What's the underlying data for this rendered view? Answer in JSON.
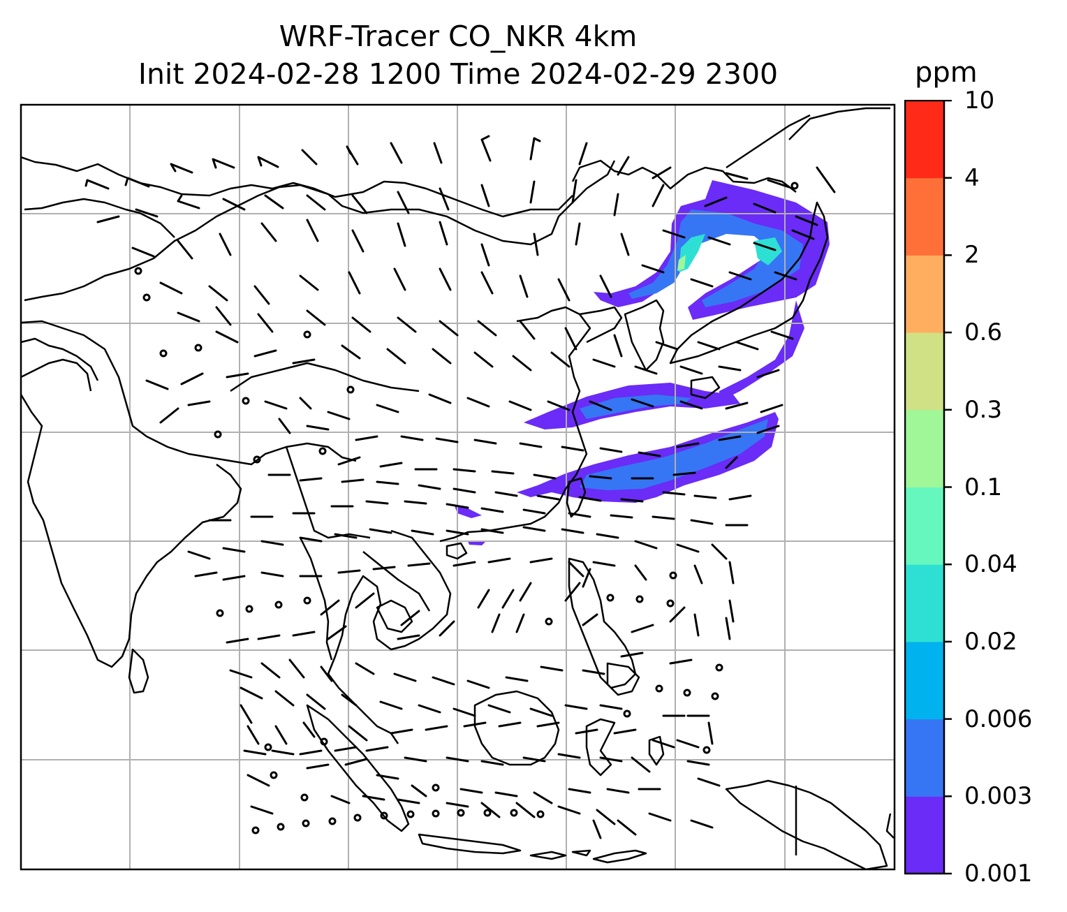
{
  "title": {
    "line1": "WRF-Tracer CO_NKR 4km",
    "line2": "Init 2024-02-28 1200 Time 2024-02-29 2300"
  },
  "colorbar": {
    "unit": "ppm",
    "levels": [
      "0.001",
      "0.003",
      "0.006",
      "0.02",
      "0.04",
      "0.1",
      "0.3",
      "0.6",
      "2",
      "4",
      "10"
    ],
    "colors": [
      "#6a2cf6",
      "#3676f4",
      "#00b2ed",
      "#2ee0d4",
      "#66f7bf",
      "#9ff798",
      "#cfe184",
      "#ffae60",
      "#ff7038",
      "#ff2b18"
    ]
  },
  "map": {
    "gridlines": true,
    "coastline_color": "#000000",
    "grid_color": "#b0b0b0",
    "tracer_plume_present": true
  }
}
